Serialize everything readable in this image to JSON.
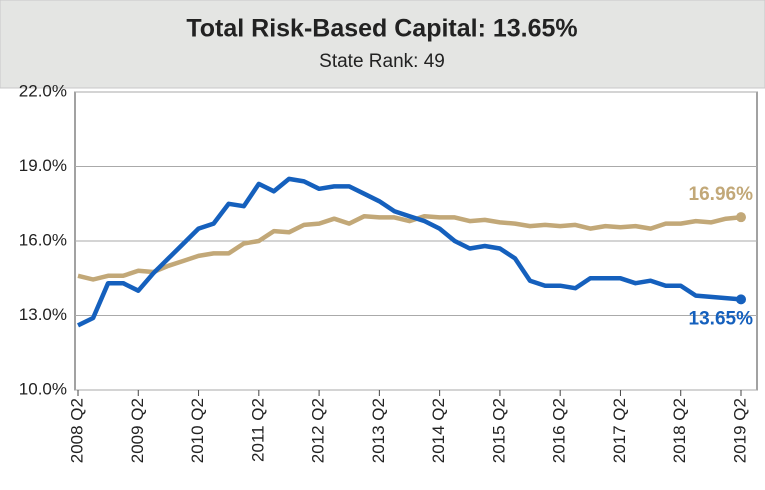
{
  "chart_data": {
    "type": "line",
    "title": "Total Risk-Based Capital: 13.65%",
    "subtitle": "State Rank: 49",
    "categories": [
      "2008 Q2",
      null,
      null,
      null,
      "2009 Q2",
      null,
      null,
      null,
      "2010 Q2",
      null,
      null,
      null,
      "2011 Q2",
      null,
      null,
      null,
      "2012 Q2",
      null,
      null,
      null,
      "2013 Q2",
      null,
      null,
      null,
      "2014 Q2",
      null,
      null,
      null,
      "2015 Q2",
      null,
      null,
      null,
      "2016 Q2",
      null,
      null,
      null,
      "2017 Q2",
      null,
      null,
      null,
      "2018 Q2",
      null,
      null,
      null,
      "2019 Q2"
    ],
    "series": [
      {
        "color": "#c2a878",
        "values": [
          14.6,
          14.45,
          14.6,
          14.6,
          14.8,
          14.75,
          15.0,
          15.2,
          15.4,
          15.5,
          15.5,
          15.9,
          16.0,
          16.4,
          16.35,
          16.65,
          16.7,
          16.9,
          16.7,
          17.0,
          16.95,
          16.95,
          16.8,
          17.0,
          16.95,
          16.95,
          16.8,
          16.85,
          16.75,
          16.7,
          16.6,
          16.65,
          16.6,
          16.65,
          16.5,
          16.6,
          16.55,
          16.6,
          16.5,
          16.7,
          16.7,
          16.8,
          16.75,
          16.9,
          16.96
        ],
        "value_labels": [
          null,
          null,
          null,
          null,
          null,
          null,
          null,
          null,
          null,
          null,
          null,
          null,
          null,
          null,
          null,
          null,
          null,
          null,
          null,
          null,
          null,
          null,
          null,
          null,
          null,
          null,
          null,
          null,
          null,
          null,
          null,
          null,
          null,
          null,
          null,
          null,
          null,
          null,
          null,
          null,
          null,
          null,
          null,
          null,
          "16.96%"
        ]
      },
      {
        "color": "#1560bd",
        "values": [
          12.6,
          12.9,
          14.3,
          14.3,
          14.0,
          14.7,
          15.3,
          15.9,
          16.5,
          16.7,
          17.5,
          17.4,
          18.3,
          18.0,
          18.5,
          18.4,
          18.1,
          18.2,
          18.2,
          17.9,
          17.6,
          17.2,
          17.0,
          16.8,
          16.5,
          16.0,
          15.7,
          15.8,
          15.7,
          15.3,
          14.4,
          14.2,
          14.2,
          14.1,
          14.5,
          14.5,
          14.5,
          14.3,
          14.4,
          14.2,
          14.2,
          13.8,
          13.75,
          13.7,
          13.65
        ],
        "value_labels": [
          null,
          null,
          null,
          null,
          null,
          null,
          null,
          null,
          null,
          null,
          null,
          null,
          null,
          null,
          null,
          null,
          null,
          null,
          null,
          null,
          null,
          null,
          null,
          null,
          null,
          null,
          null,
          null,
          null,
          null,
          null,
          null,
          null,
          null,
          null,
          null,
          null,
          null,
          null,
          null,
          null,
          null,
          null,
          null,
          "13.65%"
        ]
      }
    ],
    "ylim": [
      10,
      22
    ],
    "yticks": [
      {
        "value": 10,
        "label": "10.0%"
      },
      {
        "value": 13,
        "label": "13.0%"
      },
      {
        "value": 16,
        "label": "16.0%"
      },
      {
        "value": 19,
        "label": "19.0%"
      },
      {
        "value": 22,
        "label": "22.0%"
      }
    ],
    "grid": true
  }
}
